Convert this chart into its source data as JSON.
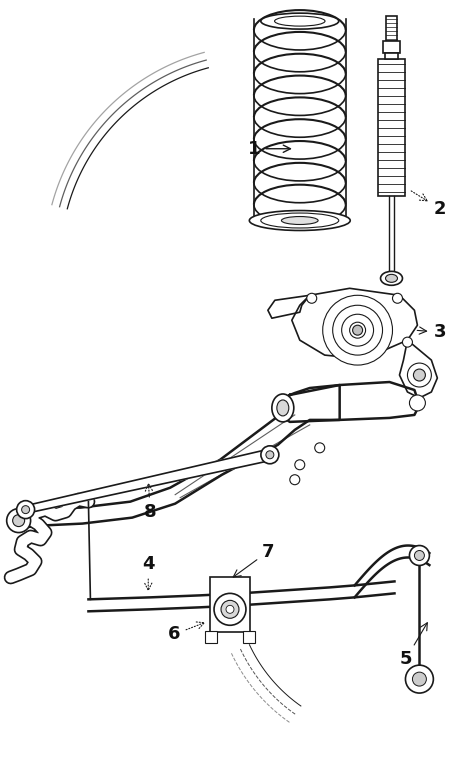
{
  "bg_color": "#ffffff",
  "line_color": "#1a1a1a",
  "fig_width": 4.56,
  "fig_height": 7.76,
  "dpi": 100
}
